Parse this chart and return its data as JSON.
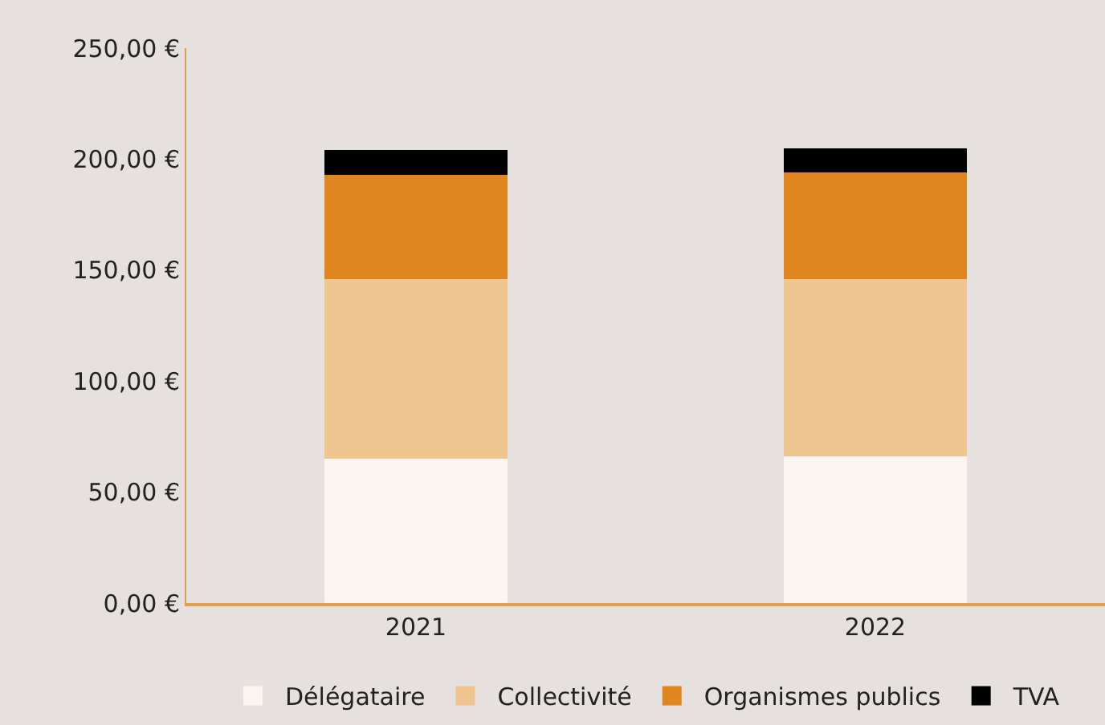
{
  "chart_data": {
    "type": "bar",
    "stacked": true,
    "categories": [
      "2021",
      "2022"
    ],
    "series": [
      {
        "name": "Délégataire",
        "color": "#fcf5ef",
        "values": [
          65,
          66
        ]
      },
      {
        "name": "Collectivité",
        "color": "#efc590",
        "values": [
          81,
          80
        ]
      },
      {
        "name": "Organismes publics",
        "color": "#df861e",
        "values": [
          47,
          48
        ]
      },
      {
        "name": "TVA",
        "color": "#000000",
        "values": [
          11,
          11
        ]
      }
    ],
    "ylim": [
      0,
      250
    ],
    "yticks": [
      {
        "value": 0,
        "label": "0,00 €"
      },
      {
        "value": 50,
        "label": "50,00 €"
      },
      {
        "value": 100,
        "label": "100,00 €"
      },
      {
        "value": 150,
        "label": "150,00 €"
      },
      {
        "value": 200,
        "label": "200,00 €"
      },
      {
        "value": 250,
        "label": "250,00 €"
      }
    ],
    "grid": false,
    "legend": "bottom"
  }
}
